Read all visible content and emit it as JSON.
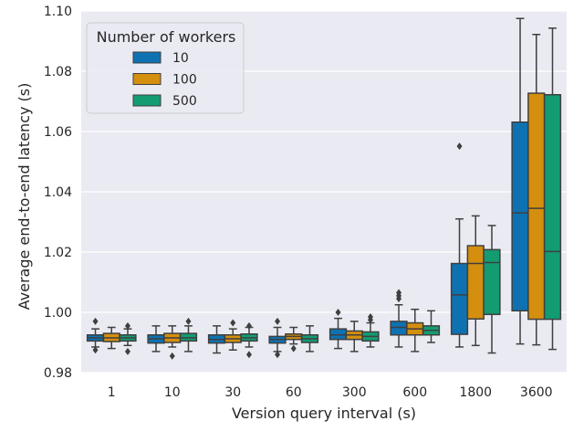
{
  "chart_data": {
    "type": "box",
    "xlabel": "Version query interval (s)",
    "ylabel": "Average end-to-end latency (s)",
    "categories": [
      "1",
      "10",
      "30",
      "60",
      "300",
      "600",
      "1800",
      "3600"
    ],
    "ylim": [
      0.98,
      1.1
    ],
    "yticks": [
      0.98,
      1.0,
      1.02,
      1.04,
      1.06,
      1.08,
      1.1
    ],
    "ytick_labels": [
      "0.98",
      "1.00",
      "1.02",
      "1.04",
      "1.06",
      "1.08",
      "1.10"
    ],
    "grid": true,
    "legend": {
      "title": "Number of workers",
      "position": "top-left"
    },
    "series": [
      {
        "name": "10",
        "color": "#0e72b2",
        "boxes": [
          {
            "whislo": 0.9885,
            "q1": 0.9905,
            "med": 0.9915,
            "q3": 0.9925,
            "whishi": 0.9945,
            "fliers": [
              0.997,
              0.9875
            ]
          },
          {
            "whislo": 0.987,
            "q1": 0.9898,
            "med": 0.9912,
            "q3": 0.9925,
            "whishi": 0.9955,
            "fliers": []
          },
          {
            "whislo": 0.9865,
            "q1": 0.9898,
            "med": 0.991,
            "q3": 0.9925,
            "whishi": 0.9955,
            "fliers": []
          },
          {
            "whislo": 0.987,
            "q1": 0.9898,
            "med": 0.991,
            "q3": 0.992,
            "whishi": 0.995,
            "fliers": [
              0.997,
              0.986
            ]
          },
          {
            "whislo": 0.988,
            "q1": 0.991,
            "med": 0.9925,
            "q3": 0.9945,
            "whishi": 0.998,
            "fliers": [
              1.0
            ]
          },
          {
            "whislo": 0.9885,
            "q1": 0.9925,
            "med": 0.995,
            "q3": 0.997,
            "whishi": 1.0025,
            "fliers": [
              1.0045,
              1.0055,
              1.0065
            ]
          },
          {
            "whislo": 0.9885,
            "q1": 0.9927,
            "med": 1.0058,
            "q3": 1.0162,
            "whishi": 1.031,
            "fliers": [
              1.0551
            ]
          },
          {
            "whislo": 0.9895,
            "q1": 1.0005,
            "med": 1.033,
            "q3": 1.0631,
            "whishi": 1.0975,
            "fliers": []
          }
        ]
      },
      {
        "name": "100",
        "color": "#d48f0f",
        "boxes": [
          {
            "whislo": 0.988,
            "q1": 0.9903,
            "med": 0.9915,
            "q3": 0.993,
            "whishi": 0.995,
            "fliers": []
          },
          {
            "whislo": 0.9885,
            "q1": 0.99,
            "med": 0.9915,
            "q3": 0.993,
            "whishi": 0.9955,
            "fliers": [
              0.9855
            ]
          },
          {
            "whislo": 0.9875,
            "q1": 0.99,
            "med": 0.9912,
            "q3": 0.9925,
            "whishi": 0.9945,
            "fliers": [
              0.9965
            ]
          },
          {
            "whislo": 0.9895,
            "q1": 0.991,
            "med": 0.992,
            "q3": 0.9928,
            "whishi": 0.995,
            "fliers": [
              0.988
            ]
          },
          {
            "whislo": 0.987,
            "q1": 0.991,
            "med": 0.9925,
            "q3": 0.9938,
            "whishi": 0.997,
            "fliers": []
          },
          {
            "whislo": 0.987,
            "q1": 0.9925,
            "med": 0.9945,
            "q3": 0.9965,
            "whishi": 1.001,
            "fliers": []
          },
          {
            "whislo": 0.989,
            "q1": 0.9978,
            "med": 1.0162,
            "q3": 1.0221,
            "whishi": 1.032,
            "fliers": []
          },
          {
            "whislo": 0.9892,
            "q1": 0.9977,
            "med": 1.0345,
            "q3": 1.0727,
            "whishi": 1.0922,
            "fliers": []
          }
        ]
      },
      {
        "name": "500",
        "color": "#139c72",
        "boxes": [
          {
            "whislo": 0.989,
            "q1": 0.9905,
            "med": 0.9915,
            "q3": 0.9925,
            "whishi": 0.9945,
            "fliers": [
              0.9955,
              0.987
            ]
          },
          {
            "whislo": 0.987,
            "q1": 0.9905,
            "med": 0.9915,
            "q3": 0.993,
            "whishi": 0.9955,
            "fliers": [
              0.997
            ]
          },
          {
            "whislo": 0.9885,
            "q1": 0.9905,
            "med": 0.9915,
            "q3": 0.9928,
            "whishi": 0.995,
            "fliers": [
              0.9955,
              0.986
            ]
          },
          {
            "whislo": 0.987,
            "q1": 0.99,
            "med": 0.9912,
            "q3": 0.9925,
            "whishi": 0.9955,
            "fliers": []
          },
          {
            "whislo": 0.9885,
            "q1": 0.9905,
            "med": 0.992,
            "q3": 0.9935,
            "whishi": 0.9965,
            "fliers": [
              0.9975,
              0.9985
            ]
          },
          {
            "whislo": 0.99,
            "q1": 0.9925,
            "med": 0.994,
            "q3": 0.9955,
            "whishi": 1.0005,
            "fliers": []
          },
          {
            "whislo": 0.9865,
            "q1": 0.9993,
            "med": 1.0165,
            "q3": 1.0208,
            "whishi": 1.0288,
            "fliers": []
          },
          {
            "whislo": 0.9877,
            "q1": 0.9977,
            "med": 1.0202,
            "q3": 1.0722,
            "whishi": 1.0943,
            "fliers": []
          }
        ]
      }
    ]
  }
}
